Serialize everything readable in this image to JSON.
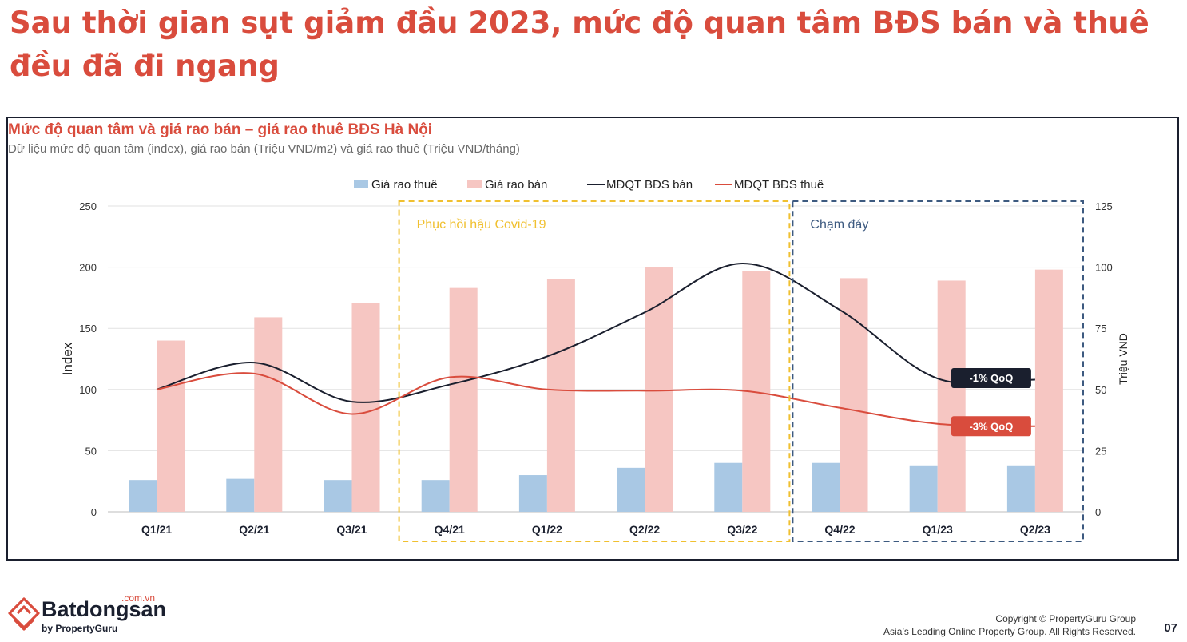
{
  "page": {
    "headline": "Sau thời gian sụt giảm đầu 2023, mức độ quan tâm BĐS bán và thuê đều đã đi ngang",
    "page_number": "07",
    "copyright_line1": "Copyright © PropertyGuru Group",
    "copyright_line2": "Asia’s Leading Online Property Group. All Rights Reserved.",
    "logo": {
      "name": "Batdongsan",
      "domain": ".com.vn",
      "byline": "by PropertyGuru",
      "color": "#d94c3d"
    }
  },
  "chart_data": {
    "type": "bar",
    "title": "Mức độ quan tâm và giá rao bán – giá rao thuê BĐS Hà Nội",
    "subtitle": "Dữ liệu mức độ quan tâm (index), giá rao bán (Triệu VND/m2) và giá rao thuê (Triệu VND/tháng)",
    "categories": [
      "Q1/21",
      "Q2/21",
      "Q3/21",
      "Q4/21",
      "Q1/22",
      "Q2/22",
      "Q3/22",
      "Q4/22",
      "Q1/23",
      "Q2/23"
    ],
    "ylabel": "Index",
    "y2label": "Triệu VND",
    "ylim": [
      0,
      250
    ],
    "y2lim": [
      0,
      125
    ],
    "yticks": [
      0,
      50,
      100,
      150,
      200,
      250
    ],
    "y2ticks": [
      0,
      25,
      50,
      75,
      100,
      125
    ],
    "grid": true,
    "legend_position": "top-center",
    "series": [
      {
        "name": "Giá rao thuê",
        "kind": "bar",
        "axis": "right",
        "color": "#a9c8e4",
        "values": [
          13,
          13.5,
          13,
          13,
          15,
          18,
          20,
          20,
          19,
          19
        ]
      },
      {
        "name": "Giá rao bán",
        "kind": "bar",
        "axis": "right",
        "color": "#f6c6c2",
        "values": [
          70,
          79.5,
          85.5,
          91.5,
          95,
          100,
          98.5,
          95.5,
          94.5,
          99
        ]
      },
      {
        "name": "MĐQT BĐS bán",
        "kind": "line",
        "axis": "left",
        "color": "#1a1f2e",
        "values": [
          100,
          122,
          90,
          104,
          127,
          163,
          203,
          165,
          109,
          108
        ]
      },
      {
        "name": "MĐQT BĐS thuê",
        "kind": "line",
        "axis": "left",
        "color": "#d94c3d",
        "values": [
          100,
          113,
          80,
          110,
          100,
          99,
          99,
          85,
          72,
          70
        ]
      }
    ],
    "annotations": [
      {
        "text": "Phục hồi hậu Covid-19",
        "from": "Q4/21",
        "to": "Q3/22",
        "color": "#f0c030"
      },
      {
        "text": "Chạm đáy",
        "from": "Q4/22",
        "to": "Q2/23",
        "color": "#3d5a80"
      }
    ],
    "callouts": [
      {
        "text": "-1% QoQ",
        "series": "MĐQT BĐS bán",
        "bg": "#1a1f2e"
      },
      {
        "text": "-3% QoQ",
        "series": "MĐQT BĐS thuê",
        "bg": "#d94c3d"
      }
    ]
  }
}
